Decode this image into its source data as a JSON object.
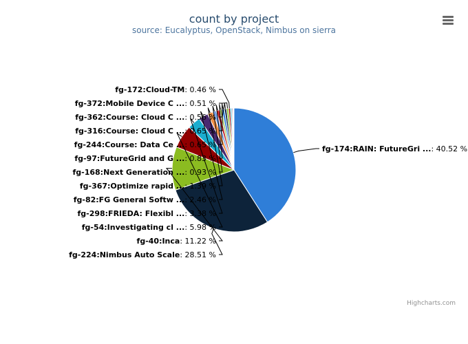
{
  "chart_data": {
    "type": "pie",
    "title": "count by project",
    "subtitle": "source: Eucalyptus, OpenStack, Nimbus on sierra",
    "credits": "Highcharts.com",
    "slices": [
      {
        "label": "fg-174:RAIN: FutureGri ...",
        "value": 40.52,
        "percent_text": "40.52 %",
        "color": "#2f7ed8"
      },
      {
        "label": "fg-224:Nimbus Auto Scale",
        "value": 28.51,
        "percent_text": "28.51 %",
        "color": "#0d233a"
      },
      {
        "label": "fg-40:Inca",
        "value": 11.22,
        "percent_text": "11.22 %",
        "color": "#8bbc21"
      },
      {
        "label": "fg-54:Investigating cl ...",
        "value": 5.98,
        "percent_text": "5.98 %",
        "color": "#910000"
      },
      {
        "label": "fg-298:FRIEDA: Flexibl ...",
        "value": 3.38,
        "percent_text": "3.38 %",
        "color": "#1aadce"
      },
      {
        "label": "fg-82:FG General Softw ...",
        "value": 2.46,
        "percent_text": "2.46 %",
        "color": "#492970"
      },
      {
        "label": "fg-367:Optimize rapid ...",
        "value": 1.39,
        "percent_text": "1.39 %",
        "color": "#f28f43"
      },
      {
        "label": "fg-168:Next Generation ...",
        "value": 0.93,
        "percent_text": "0.93 %",
        "color": "#77a1e5"
      },
      {
        "label": "fg-97:FutureGrid and G ...",
        "value": 0.83,
        "percent_text": "0.83 %",
        "color": "#c42525"
      },
      {
        "label": "fg-244:Course: Data Ce ...",
        "value": 0.65,
        "percent_text": "0.65 %",
        "color": "#a6c96a"
      },
      {
        "label": "fg-316:Course: Cloud C ...",
        "value": 0.65,
        "percent_text": "0.65 %",
        "color": "#2f7ed8"
      },
      {
        "label": "fg-362:Course: Cloud C ...",
        "value": 0.56,
        "percent_text": "0.56 %",
        "color": "#0d233a"
      },
      {
        "label": "fg-372:Mobile Device C ...",
        "value": 0.51,
        "percent_text": "0.51 %",
        "color": "#8bbc21"
      },
      {
        "label": "fg-172:Cloud-TM",
        "value": 0.46,
        "percent_text": "0.46 %",
        "color": "#910000"
      },
      {
        "label": "",
        "value": 0.35,
        "percent_text": "",
        "color": "#1aadce"
      },
      {
        "label": "",
        "value": 0.25,
        "percent_text": "",
        "color": "#492970"
      },
      {
        "label": "",
        "value": 0.2,
        "percent_text": "",
        "color": "#f28f43"
      },
      {
        "label": "",
        "value": 0.15,
        "percent_text": "",
        "color": "#77a1e5"
      }
    ]
  }
}
